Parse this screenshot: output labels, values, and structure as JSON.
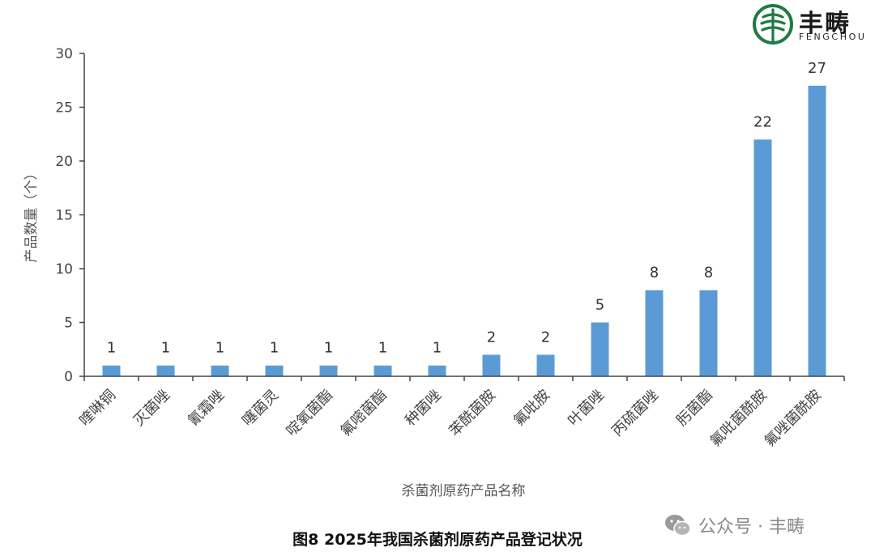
{
  "logo": {
    "name": "丰畴",
    "sub": "FENGCHOU"
  },
  "chart_data": {
    "type": "bar",
    "categories": [
      "喹啉铜",
      "灭菌唑",
      "氰霜唑",
      "噻菌灵",
      "啶氧菌酯",
      "氟嘧菌酯",
      "种菌唑",
      "苯酰菌胺",
      "氟吡胺",
      "叶菌唑",
      "丙硫菌唑",
      "肟菌酯",
      "氟吡菌酰胺",
      "氟唑菌酰胺"
    ],
    "values": [
      1,
      1,
      1,
      1,
      1,
      1,
      1,
      2,
      2,
      5,
      8,
      8,
      22,
      27
    ],
    "data_labels": [
      "1",
      "1",
      "1",
      "1",
      "1",
      "1",
      "1",
      "2",
      "2",
      "5",
      "8",
      "8",
      "22",
      "27"
    ],
    "xlabel": "杀菌剂原药产品名称",
    "ylabel": "产品数量（个）",
    "ylim": [
      0,
      30
    ],
    "yticks": [
      0,
      5,
      10,
      15,
      20,
      25,
      30
    ],
    "ytick_labels": [
      "0",
      "5",
      "10",
      "15",
      "20",
      "25",
      "30"
    ],
    "grid": false,
    "bar_color": "#5b9bd5"
  },
  "caption": "图8 2025年我国杀菌剂原药产品登记状况",
  "watermark": "公众号 · 丰畴"
}
